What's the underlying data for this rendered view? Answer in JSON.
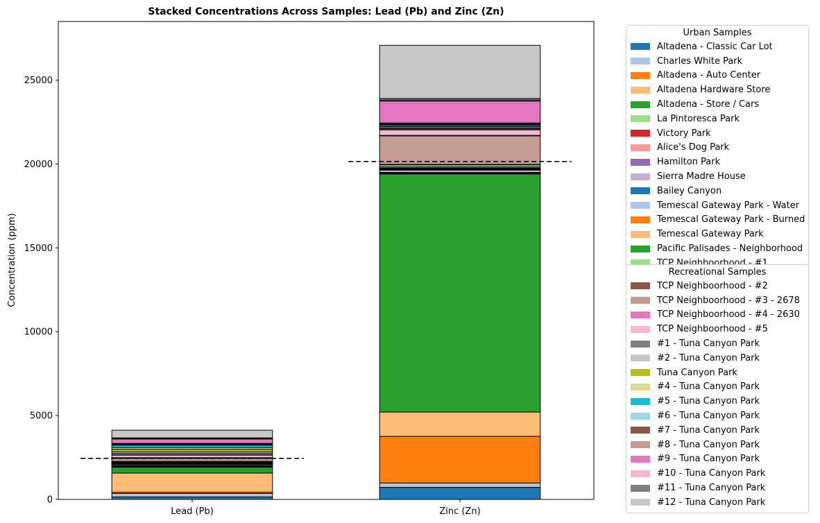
{
  "chart_data": {
    "type": "bar",
    "stacked": true,
    "title": "Stacked Concentrations Across Samples: Lead (Pb) and Zinc (Zn)",
    "xlabel": "",
    "ylabel": "Concentration (ppm)",
    "categories": [
      "Lead (Pb)",
      "Zinc (Zn)"
    ],
    "ylim": [
      0,
      28500
    ],
    "yticks": [
      0,
      5000,
      10000,
      15000,
      20000,
      25000
    ],
    "reference_lines": [
      {
        "category": "Lead (Pb)",
        "value": 2450
      },
      {
        "category": "Zinc (Zn)",
        "value": 20150
      }
    ],
    "series": [
      {
        "name": "Altadena - Classic Car Lot",
        "color": "#1f77b4",
        "values": [
          150,
          720
        ]
      },
      {
        "name": "Charles White Park",
        "color": "#aec7e8",
        "values": [
          200,
          260
        ]
      },
      {
        "name": "Altadena - Auto Center",
        "color": "#ff7f0e",
        "values": [
          80,
          2780
        ]
      },
      {
        "name": "Altadena Hardware Store",
        "color": "#ffbb78",
        "values": [
          1140,
          1450
        ]
      },
      {
        "name": "Altadena - Store / Cars",
        "color": "#2ca02c",
        "values": [
          350,
          14200
        ]
      },
      {
        "name": "La Pintoresca Park",
        "color": "#98df8a",
        "values": [
          20,
          30
        ]
      },
      {
        "name": "Victory Park",
        "color": "#d62728",
        "values": [
          20,
          20
        ]
      },
      {
        "name": "Alice's Dog Park",
        "color": "#ff9896",
        "values": [
          20,
          20
        ]
      },
      {
        "name": "Hamilton Park",
        "color": "#9467bd",
        "values": [
          30,
          20
        ]
      },
      {
        "name": "Sierra Madre House",
        "color": "#c5b0d5",
        "values": [
          60,
          140
        ]
      },
      {
        "name": "Bailey Canyon",
        "color": "#1f77b4",
        "values": [
          40,
          30
        ]
      },
      {
        "name": "Temescal Gateway Park - Water",
        "color": "#aec7e8",
        "values": [
          20,
          30
        ]
      },
      {
        "name": "Temescal Gateway Park - Burned",
        "color": "#ff7f0e",
        "values": [
          20,
          20
        ]
      },
      {
        "name": "Temescal Gateway Park",
        "color": "#ffbb78",
        "values": [
          20,
          30
        ]
      },
      {
        "name": "Pacific Palisades - Neighborhood",
        "color": "#2ca02c",
        "values": [
          30,
          80
        ]
      },
      {
        "name": "TCP Neighboorhood - #1",
        "color": "#98df8a",
        "values": [
          40,
          120
        ]
      },
      {
        "name": "TCP Neighboorhood - #2",
        "color": "#8c564b",
        "values": [
          30,
          30
        ]
      },
      {
        "name": "TCP Neighboorhood - #3 - 2678",
        "color": "#c49c94",
        "values": [
          180,
          1700
        ]
      },
      {
        "name": "TCP Neighboorhood - #4 - 2630",
        "color": "#e377c2",
        "values": [
          40,
          30
        ]
      },
      {
        "name": "TCP Neighboorhood - #5",
        "color": "#f7b6d2",
        "values": [
          150,
          330
        ]
      },
      {
        "name": "#1 - Tuna Canyon Park",
        "color": "#7f7f7f",
        "values": [
          100,
          60
        ]
      },
      {
        "name": "#2 - Tuna Canyon Park",
        "color": "#c7c7c7",
        "values": [
          100,
          60
        ]
      },
      {
        "name": "Tuna Canyon Park",
        "color": "#bcbd22",
        "values": [
          150,
          80
        ]
      },
      {
        "name": "#4 - Tuna Canyon Park",
        "color": "#dbdb8d",
        "values": [
          100,
          60
        ]
      },
      {
        "name": "#5 - Tuna Canyon Park",
        "color": "#17becf",
        "values": [
          150,
          60
        ]
      },
      {
        "name": "#6 - Tuna Canyon Park",
        "color": "#9edae5",
        "values": [
          40,
          30
        ]
      },
      {
        "name": "#7 - Tuna Canyon Park",
        "color": "#8c564b",
        "values": [
          30,
          30
        ]
      },
      {
        "name": "#8 - Tuna Canyon Park",
        "color": "#c49c94",
        "values": [
          30,
          30
        ]
      },
      {
        "name": "#9 - Tuna Canyon Park",
        "color": "#e377c2",
        "values": [
          260,
          1300
        ]
      },
      {
        "name": "#10 - Tuna Canyon Park",
        "color": "#f7b6d2",
        "values": [
          40,
          60
        ]
      },
      {
        "name": "#11 - Tuna Canyon Park",
        "color": "#7f7f7f",
        "values": [
          30,
          100
        ]
      },
      {
        "name": "#12 - Tuna Canyon Park",
        "color": "#c7c7c7",
        "values": [
          460,
          3170
        ]
      }
    ],
    "legends": [
      {
        "title": "Urban Samples",
        "placement": "upper-right-outside",
        "start": 0,
        "count": 16
      },
      {
        "title": "Recreational Samples",
        "placement": "lower-right-outside",
        "start": 16,
        "count": 16
      }
    ]
  }
}
